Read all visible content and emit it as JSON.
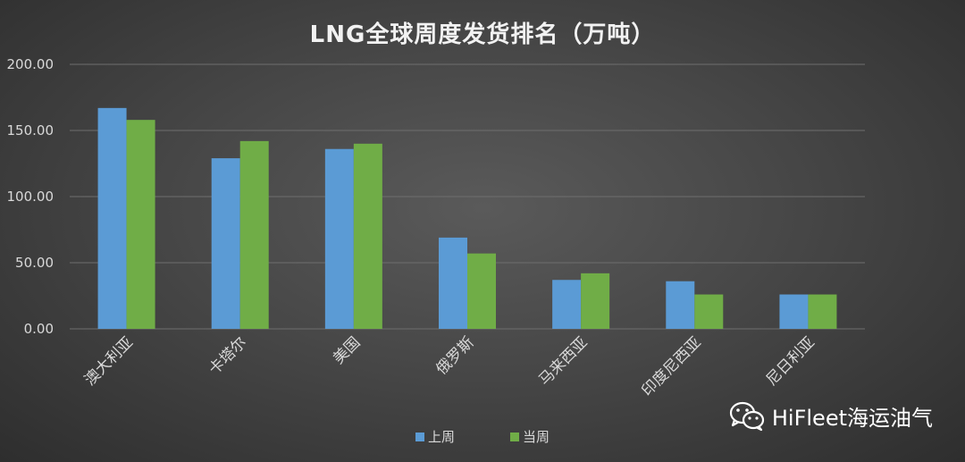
{
  "chart_data": {
    "type": "bar",
    "title": "LNG全球周度发货排名（万吨）",
    "categories": [
      "澳大利亚",
      "卡塔尔",
      "美国",
      "俄罗斯",
      "马来西亚",
      "印度尼西亚",
      "尼日利亚"
    ],
    "series": [
      {
        "name": "上周",
        "color": "#5b9bd5",
        "values": [
          167,
          129,
          136,
          69,
          37,
          36,
          26
        ]
      },
      {
        "name": "当周",
        "color": "#70ad47",
        "values": [
          158,
          142,
          140,
          57,
          42,
          26,
          26
        ]
      }
    ],
    "yticks": [
      "0.00",
      "50.00",
      "100.00",
      "150.00",
      "200.00"
    ],
    "ylim": [
      0,
      200
    ],
    "grid": true,
    "legend_position": "bottom"
  },
  "watermark": {
    "text": "HiFleet海运油气",
    "icon": "wechat-icon"
  }
}
